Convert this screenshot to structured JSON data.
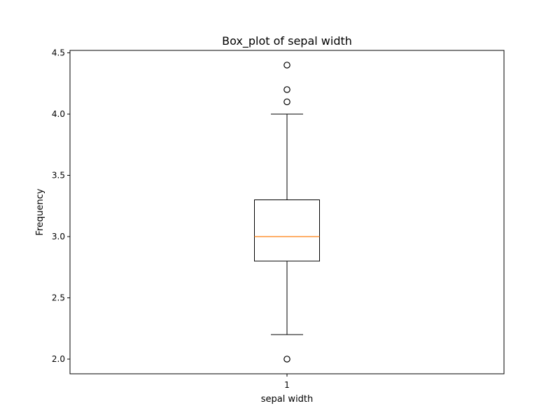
{
  "chart_data": {
    "type": "box",
    "title": "Box_plot of sepal width",
    "xlabel": "sepal width",
    "ylabel": "Frequency",
    "categories": [
      "1"
    ],
    "ylim": [
      1.88,
      4.52
    ],
    "yticks": [
      2.0,
      2.5,
      3.0,
      3.5,
      4.0,
      4.5
    ],
    "ytick_labels": [
      "2.0",
      "2.5",
      "3.0",
      "3.5",
      "4.0",
      "4.5"
    ],
    "grid": false,
    "boxes": [
      {
        "category": "1",
        "whisker_low": 2.2,
        "q1": 2.8,
        "median": 3.0,
        "q3": 3.3,
        "whisker_high": 4.0,
        "outliers": [
          2.0,
          4.1,
          4.2,
          4.4
        ]
      }
    ],
    "colors": {
      "box": "#000000",
      "median": "#ff7f0e",
      "outlier_edge": "#000000"
    }
  }
}
